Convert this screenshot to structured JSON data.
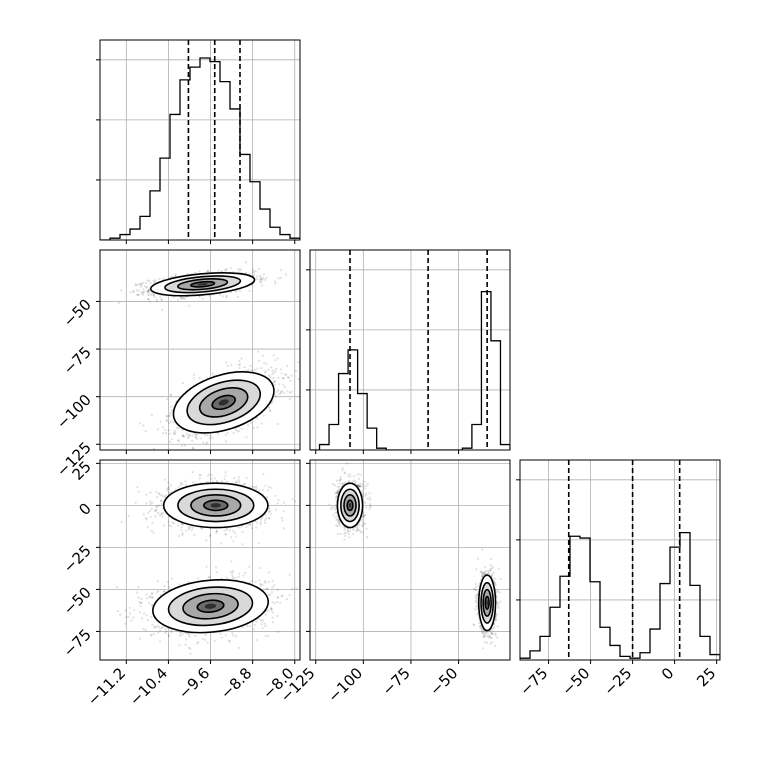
{
  "chart_data": {
    "type": "corner",
    "title": "",
    "grid": true,
    "histograms": [
      {
        "param": 0,
        "range": [
          -11.7,
          -7.9
        ],
        "ylim": [
          0,
          1.0
        ],
        "quantiles": [
          -10.02,
          -9.52,
          -9.04
        ],
        "bins": [
          -11.7,
          -11.51,
          -11.32,
          -11.13,
          -10.94,
          -10.75,
          -10.56,
          -10.37,
          -10.18,
          -9.99,
          -9.8,
          -9.61,
          -9.42,
          -9.23,
          -9.04,
          -8.85,
          -8.66,
          -8.47,
          -8.28,
          -8.09,
          -7.9
        ],
        "counts": [
          0.0,
          0.01,
          0.03,
          0.06,
          0.13,
          0.27,
          0.45,
          0.69,
          0.88,
          0.95,
          1.0,
          0.98,
          0.87,
          0.72,
          0.47,
          0.32,
          0.17,
          0.07,
          0.03,
          0.01
        ]
      },
      {
        "param": 1,
        "range": [
          -128,
          -23
        ],
        "ylim": [
          0,
          1.0
        ],
        "quantiles": [
          -107,
          -66,
          -35
        ],
        "bins": [
          -128,
          -123,
          -118,
          -113,
          -108,
          -103,
          -98,
          -93,
          -88,
          -83,
          -78,
          -73,
          -68,
          -63,
          -58,
          -53,
          -48,
          -43,
          -38,
          -33,
          -28,
          -23
        ],
        "counts": [
          0.0,
          0.03,
          0.14,
          0.42,
          0.55,
          0.31,
          0.12,
          0.01,
          0.0,
          0.0,
          0.0,
          0.0,
          0.0,
          0.0,
          0.0,
          0.0,
          0.01,
          0.14,
          0.87,
          0.6,
          0.03
        ]
      },
      {
        "param": 2,
        "range": [
          -92,
          27
        ],
        "ylim": [
          0,
          1.0
        ],
        "quantiles": [
          -63,
          -25,
          3
        ],
        "bins": [
          -92,
          -86.05,
          -80.1,
          -74.15,
          -68.2,
          -62.25,
          -56.3,
          -50.35,
          -44.4,
          -38.45,
          -32.5,
          -26.55,
          -20.6,
          -14.65,
          -8.7,
          -2.75,
          3.2,
          9.15,
          15.1,
          21.05,
          27
        ],
        "counts": [
          0.01,
          0.05,
          0.13,
          0.29,
          0.46,
          0.68,
          0.67,
          0.43,
          0.18,
          0.08,
          0.02,
          0.01,
          0.04,
          0.17,
          0.42,
          0.62,
          0.7,
          0.41,
          0.13,
          0.03
        ]
      }
    ],
    "density_panels": [
      {
        "x_param": 0,
        "y_param": 1,
        "clusters": [
          {
            "center": [
              -9.75,
              -41
            ],
            "sd": [
              0.45,
              2.5
            ],
            "tilt_per_unit_x": 2.5,
            "weight": 0.5
          },
          {
            "center": [
              -9.35,
              -103
            ],
            "sd": [
              0.45,
              6.5
            ],
            "tilt_per_unit_x": 9.0,
            "weight": 0.5
          }
        ]
      },
      {
        "x_param": 0,
        "y_param": 2,
        "clusters": [
          {
            "center": [
              -9.5,
              0
            ],
            "sd": [
              0.45,
              6.0
            ],
            "tilt_per_unit_x": 0,
            "weight": 0.5
          },
          {
            "center": [
              -9.6,
              -60
            ],
            "sd": [
              0.5,
              7.0
            ],
            "tilt_per_unit_x": 3.0,
            "weight": 0.5
          }
        ]
      },
      {
        "x_param": 1,
        "y_param": 2,
        "clusters": [
          {
            "center": [
              -107,
              0
            ],
            "sd": [
              3.0,
              6.0
            ],
            "tilt_per_unit_x": 0,
            "weight": 0.5
          },
          {
            "center": [
              -35,
              -58
            ],
            "sd": [
              2.0,
              7.5
            ],
            "tilt_per_unit_x": 0,
            "weight": 0.5
          }
        ]
      }
    ],
    "ranges": [
      [
        -11.7,
        -7.9
      ],
      [
        -128,
        -23
      ],
      [
        -92,
        27
      ]
    ],
    "ticks": [
      [
        "-11.2",
        "-10.4",
        "-9.6",
        "-8.8",
        "-8.0"
      ],
      [
        "−125",
        "−100",
        "−75",
        "−50"
      ],
      [
        "−75",
        "−50",
        "−25",
        "0",
        "25"
      ]
    ],
    "tick_values": [
      [
        -11.2,
        -10.4,
        -9.6,
        -8.8,
        -8.0
      ],
      [
        -125,
        -100,
        -75,
        -50
      ],
      [
        -75,
        -50,
        -25,
        0,
        25
      ]
    ],
    "x_tick_labels": [
      [
        "−11.2",
        "−10.4",
        "−9.6",
        "−8.8",
        "−8.0"
      ],
      [
        "−125",
        "−100",
        "−75",
        "−50"
      ],
      [
        "−75",
        "−50",
        "−25",
        "0",
        "25"
      ]
    ],
    "y_tick_labels_row1": [
      "−125",
      "−100",
      "−75",
      "−50"
    ],
    "y_tick_labels_row2": [
      "−75",
      "−50",
      "−25",
      "0",
      "25"
    ]
  }
}
